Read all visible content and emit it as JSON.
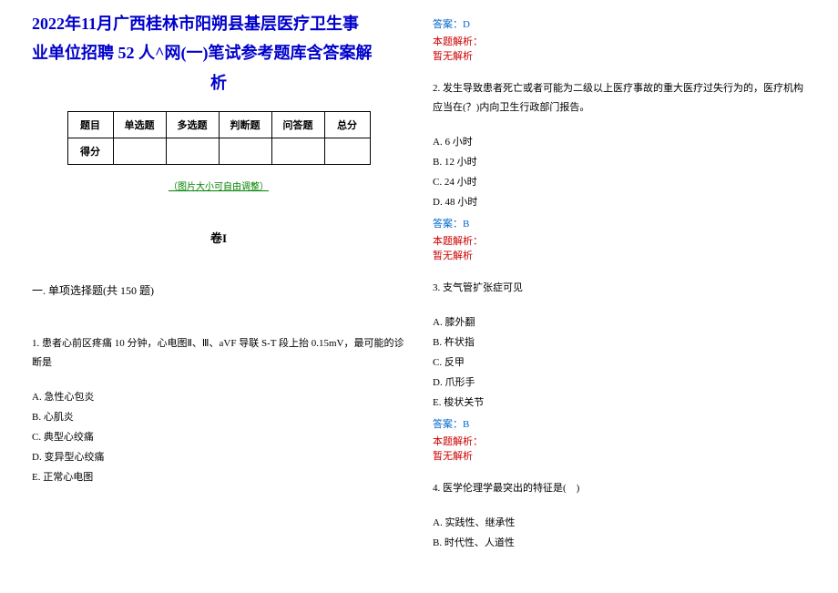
{
  "title_line1": "2022年11月广西桂林市阳朔县基层医疗卫生事",
  "title_line2": "业单位招聘 52 人^网(一)笔试参考题库含答案解",
  "title_line3": "析",
  "table": {
    "headers": [
      "题目",
      "单选题",
      "多选题",
      "判断题",
      "问答题",
      "总分"
    ],
    "row_label": "得分"
  },
  "adjust_note": "（图片大小可自由调整）",
  "volume_label": "卷I",
  "section_title": "一. 单项选择题(共 150 题)",
  "left_questions": [
    {
      "num": "1.",
      "stem": "患者心前区疼痛 10 分钟，心电图Ⅱ、Ⅲ、aVF 导联 S-T 段上抬 0.15mV，最可能的诊断是",
      "options": [
        "A. 急性心包炎",
        "B. 心肌炎",
        "C. 典型心绞痛",
        "D. 变异型心绞痛",
        "E. 正常心电图"
      ]
    }
  ],
  "right_col": {
    "answer_d": "答案：D",
    "analysis_label": "本题解析：",
    "no_analysis": "暂无解析",
    "questions": [
      {
        "num": "2.",
        "stem": "发生导致患者死亡或者可能为二级以上医疗事故的重大医疗过失行为的，医疗机构应当在(？)内向卫生行政部门报告。",
        "options": [
          "A. 6 小时",
          "B. 12 小时",
          "C. 24 小时",
          "D. 48 小时"
        ],
        "answer": "答案：B"
      },
      {
        "num": "3.",
        "stem": "支气管扩张症可见",
        "options": [
          "A. 膝外翻",
          "B. 杵状指",
          "C. 反甲",
          "D. 爪形手",
          "E. 梭状关节"
        ],
        "answer": "答案：B"
      },
      {
        "num": "4.",
        "stem": "医学伦理学最突出的特征是(　)",
        "options": [
          "A. 实践性、继承性",
          "B. 时代性、人道性"
        ]
      }
    ]
  }
}
